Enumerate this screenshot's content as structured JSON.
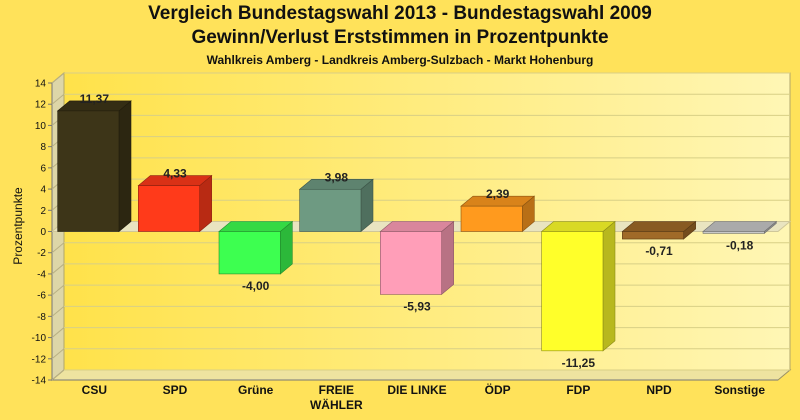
{
  "header": {
    "title_line1": "Vergleich Bundestagswahl 2013 - Bundestagswahl 2009",
    "title_line2": "Gewinn/Verlust Erststimmen in Prozentpunkte",
    "subtitle": "Wahlkreis Amberg - Landkreis Amberg-Sulzbach - Markt Hohenburg"
  },
  "chart_data": {
    "type": "bar",
    "title": "Vergleich Bundestagswahl 2013 - Bundestagswahl 2009 / Gewinn/Verlust Erststimmen in Prozentpunkte",
    "subtitle": "Wahlkreis Amberg - Landkreis Amberg-Sulzbach - Markt Hohenburg",
    "xlabel": "",
    "ylabel": "Prozentpunkte",
    "ylim": [
      -14,
      14
    ],
    "yticks": [
      14,
      12,
      10,
      8,
      6,
      4,
      2,
      0,
      -2,
      -4,
      -6,
      -8,
      -10,
      -12,
      -14
    ],
    "categories": [
      {
        "line1": "CSU",
        "line2": ""
      },
      {
        "line1": "SPD",
        "line2": ""
      },
      {
        "line1": "Grüne",
        "line2": ""
      },
      {
        "line1": "FREIE",
        "line2": "WÄHLER"
      },
      {
        "line1": "DIE LINKE",
        "line2": ""
      },
      {
        "line1": "ÖDP",
        "line2": ""
      },
      {
        "line1": "FDP",
        "line2": ""
      },
      {
        "line1": "NPD",
        "line2": ""
      },
      {
        "line1": "Sonstige",
        "line2": ""
      }
    ],
    "values": [
      11.37,
      4.33,
      -4.0,
      3.98,
      -5.93,
      2.39,
      -11.25,
      -0.71,
      -0.18
    ],
    "value_labels": [
      "11,37",
      "4,33",
      "-4,00",
      "3,98",
      "-5,93",
      "2,39",
      "-11,25",
      "-0,71",
      "-0,18"
    ],
    "colors": [
      "#3d3518",
      "#ff3a1a",
      "#3dff50",
      "#6e9a82",
      "#ff9eb8",
      "#ff9a1e",
      "#ffff2a",
      "#a06a28",
      "#c8c8c8"
    ],
    "grid": true,
    "legend": "none"
  }
}
